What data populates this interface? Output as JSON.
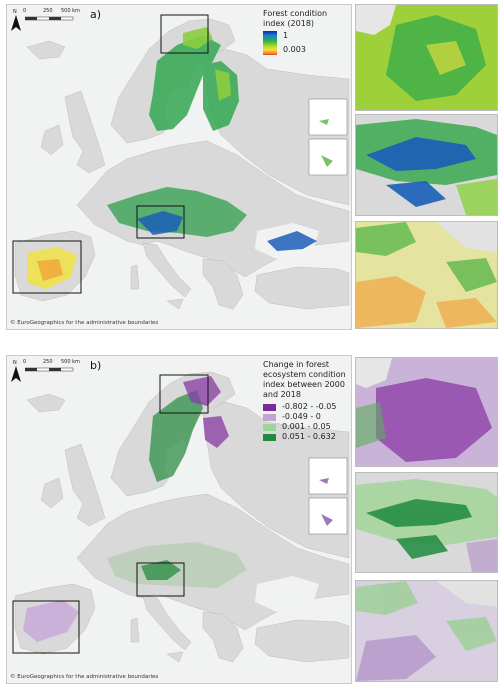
{
  "panel_a": {
    "letter": "a)",
    "legend_title": "Forest condition index (2018)",
    "legend_max": "1",
    "legend_min": "0.003",
    "credit": "© EuroGeographics for the administrative boundaries",
    "north_label": "N",
    "scale_ticks": [
      "0",
      "250",
      "500 km"
    ]
  },
  "panel_b": {
    "letter": "b)",
    "legend_title": "Change in forest ecosystem condition index between 2000 and 2018",
    "classes": [
      {
        "label": "-0.802 - -0.05",
        "color": "#7a2a99"
      },
      {
        "label": "-0.049 - 0",
        "color": "#c2a3d6"
      },
      {
        "label": "0.001 - 0.05",
        "color": "#9fd49a"
      },
      {
        "label": "0.051 - 0.632",
        "color": "#1f8b3e"
      }
    ],
    "credit": "© EuroGeographics for the administrative boundaries",
    "north_label": "N",
    "scale_ticks": [
      "0",
      "250",
      "500 km"
    ]
  },
  "colors": {
    "land": "#d9d9d9",
    "sea": "#f1f2f2",
    "forest_a": "#3fa34d",
    "forest_b": "#a8c8a0"
  }
}
